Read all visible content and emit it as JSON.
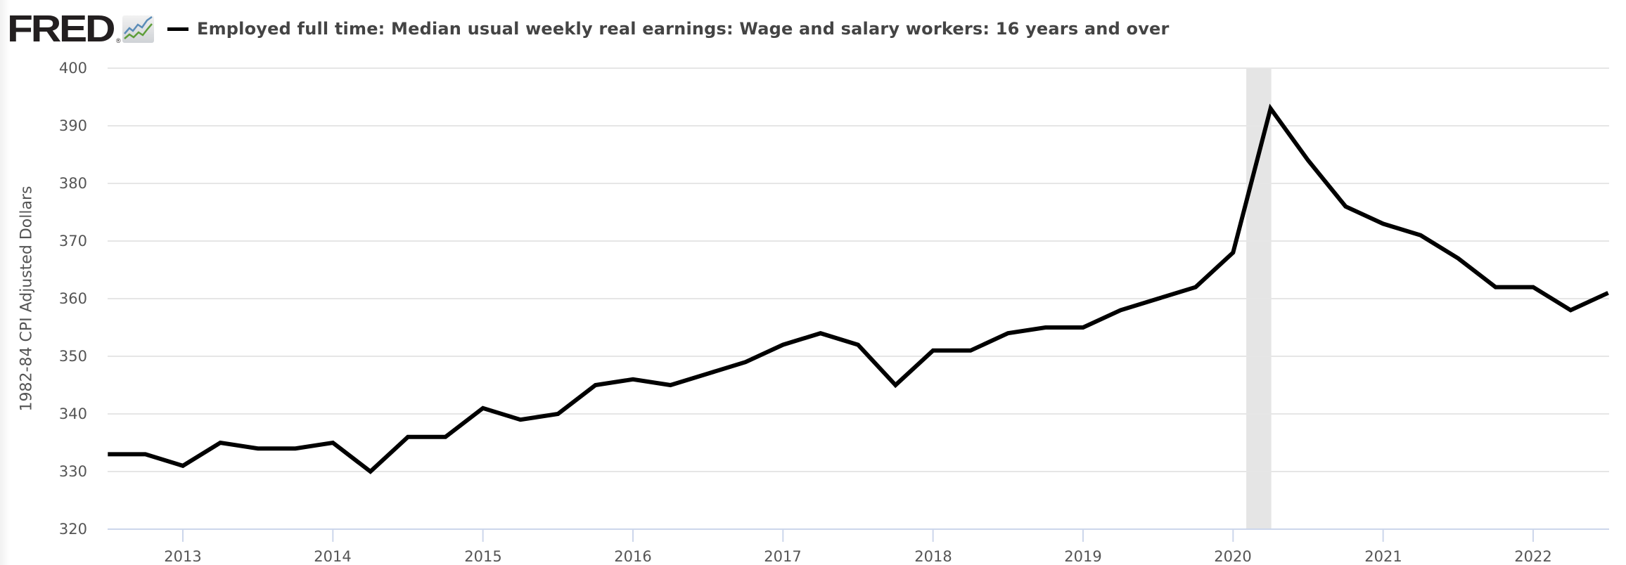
{
  "header": {
    "logo_text": "FRED",
    "logo_registered": "®",
    "logo_icon": "fred-chart-icon",
    "legend_label": "Employed full time: Median usual weekly real earnings: Wage and salary workers: 16 years and over",
    "legend_color": "#000000"
  },
  "axes": {
    "y_title": "1982-84 CPI Adjusted Dollars",
    "y_ticks": [
      "400",
      "390",
      "380",
      "370",
      "360",
      "350",
      "340",
      "330",
      "320"
    ],
    "x_ticks": [
      "2013",
      "2014",
      "2015",
      "2016",
      "2017",
      "2018",
      "2019",
      "2020",
      "2021",
      "2022"
    ]
  },
  "colors": {
    "line": "#000000",
    "grid": "#e6e6e6",
    "axis": "#ccd6eb",
    "recession": "#e5e5e5",
    "title_text": "#444444",
    "tick_text": "#555555"
  },
  "chart_data": {
    "type": "line",
    "title": "Employed full time: Median usual weekly real earnings: Wage and salary workers: 16 years and over",
    "xlabel": "",
    "ylabel": "1982-84 CPI Adjusted Dollars",
    "ylim": [
      320,
      400
    ],
    "xlim": [
      "2012-07-01",
      "2022-07-01"
    ],
    "grid": true,
    "legend_position": "top",
    "frequency": "quarterly",
    "x": [
      "2012-Q3",
      "2012-Q4",
      "2013-Q1",
      "2013-Q2",
      "2013-Q3",
      "2013-Q4",
      "2014-Q1",
      "2014-Q2",
      "2014-Q3",
      "2014-Q4",
      "2015-Q1",
      "2015-Q2",
      "2015-Q3",
      "2015-Q4",
      "2016-Q1",
      "2016-Q2",
      "2016-Q3",
      "2016-Q4",
      "2017-Q1",
      "2017-Q2",
      "2017-Q3",
      "2017-Q4",
      "2018-Q1",
      "2018-Q2",
      "2018-Q3",
      "2018-Q4",
      "2019-Q1",
      "2019-Q2",
      "2019-Q3",
      "2019-Q4",
      "2020-Q1",
      "2020-Q2",
      "2020-Q3",
      "2020-Q4",
      "2021-Q1",
      "2021-Q2",
      "2021-Q3",
      "2021-Q4",
      "2022-Q1",
      "2022-Q2",
      "2022-Q3"
    ],
    "series": [
      {
        "name": "Employed full time: Median usual weekly real earnings: Wage and salary workers: 16 years and over",
        "color": "#000000",
        "values": [
          333,
          333,
          331,
          335,
          334,
          334,
          335,
          330,
          336,
          336,
          341,
          339,
          340,
          345,
          346,
          345,
          347,
          349,
          352,
          354,
          352,
          345,
          351,
          351,
          354,
          355,
          355,
          358,
          360,
          362,
          368,
          393,
          384,
          376,
          373,
          371,
          367,
          362,
          362,
          358,
          361
        ]
      }
    ],
    "recession_bands": [
      {
        "start": "2020-02",
        "end": "2020-04"
      }
    ],
    "y_ticks": [
      320,
      330,
      340,
      350,
      360,
      370,
      380,
      390,
      400
    ],
    "x_tick_labels": [
      "2013",
      "2014",
      "2015",
      "2016",
      "2017",
      "2018",
      "2019",
      "2020",
      "2021",
      "2022"
    ]
  }
}
